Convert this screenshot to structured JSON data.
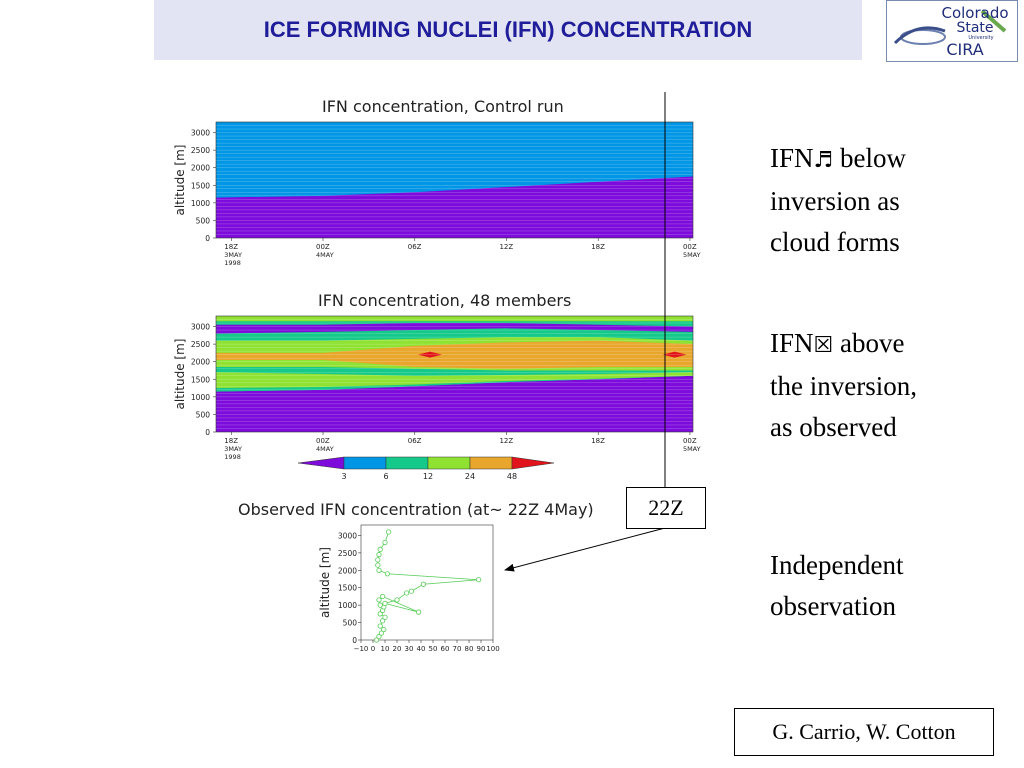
{
  "header": {
    "title": "ICE FORMING NUCLEI (IFN) CONCENTRATION",
    "logo_line1": "Colorado",
    "logo_line2": "State",
    "logo_line3": "University",
    "logo_line4": "CIRA"
  },
  "bullets": [
    {
      "line1_prefix": "IFN",
      "symbol": "♬",
      "line1_suffix": " below",
      "line2": "inversion as",
      "line3": "cloud forms"
    },
    {
      "line1_prefix": "IFN",
      "symbol": "☒",
      "line1_suffix": " above",
      "line2": "the inversion,",
      "line3": "as observed"
    },
    {
      "line1": "Independent",
      "line2": "observation"
    }
  ],
  "marker_label": "22Z",
  "credit": "G. Carrio, W. Cotton",
  "colors": {
    "title_bg": "#e3e4f3",
    "title_text": "#1f1d9a",
    "c_violet": "#7d0bdb",
    "c_blue": "#0096e6",
    "c_teal": "#14c98a",
    "c_green": "#8fe232",
    "c_orange": "#e8a62c",
    "c_red": "#e0141a",
    "observed_line": "#55cc55"
  },
  "chart_data": [
    {
      "type": "heatmap",
      "title": "IFN concentration, Control run",
      "ylabel": "altitude [m]",
      "yticks": [
        "0",
        "500",
        "1000",
        "1500",
        "2000",
        "2500",
        "3000"
      ],
      "ylim": [
        0,
        3300
      ],
      "xticks": [
        {
          "label": "18Z",
          "sub1": "3MAY",
          "sub2": "1998"
        },
        {
          "label": "00Z",
          "sub1": "4MAY",
          "sub2": ""
        },
        {
          "label": "06Z",
          "sub1": "",
          "sub2": ""
        },
        {
          "label": "12Z",
          "sub1": "",
          "sub2": ""
        },
        {
          "label": "18Z",
          "sub1": "",
          "sub2": ""
        },
        {
          "label": "00Z",
          "sub1": "5MAY",
          "sub2": ""
        }
      ],
      "x_hours": [
        0,
        6,
        12,
        18,
        24,
        30
      ],
      "xlim": [
        -1,
        30.2
      ],
      "boundary_hours": [
        -1,
        6,
        12,
        18,
        24,
        30.2
      ],
      "boundary_altitude": [
        1150,
        1200,
        1300,
        1450,
        1600,
        1750
      ],
      "above_class": "blue",
      "below_class": "violet"
    },
    {
      "type": "heatmap",
      "title": "IFN concentration, 48 members",
      "ylabel": "altitude [m]",
      "yticks": [
        "0",
        "500",
        "1000",
        "1500",
        "2000",
        "2500",
        "3000"
      ],
      "ylim": [
        0,
        3300
      ],
      "xticks": [
        {
          "label": "18Z",
          "sub1": "3MAY",
          "sub2": "1998"
        },
        {
          "label": "00Z",
          "sub1": "4MAY",
          "sub2": ""
        },
        {
          "label": "06Z",
          "sub1": "",
          "sub2": ""
        },
        {
          "label": "12Z",
          "sub1": "",
          "sub2": ""
        },
        {
          "label": "18Z",
          "sub1": "",
          "sub2": ""
        },
        {
          "label": "00Z",
          "sub1": "5MAY",
          "sub2": ""
        }
      ],
      "x_hours": [
        0,
        6,
        12,
        18,
        24,
        30
      ],
      "xlim": [
        -1,
        30.2
      ],
      "layers": [
        {
          "class": "violet",
          "lower_hours": [
            -1,
            30.2
          ],
          "lower_alt": [
            0,
            0
          ],
          "upper_hours": [
            -1,
            6,
            12,
            18,
            24,
            30.2
          ],
          "upper_alt": [
            1150,
            1200,
            1300,
            1420,
            1500,
            1600
          ]
        },
        {
          "class": "teal",
          "lower_hours": [
            -1,
            6,
            12,
            18,
            24,
            30.2
          ],
          "lower_alt": [
            1150,
            1200,
            1300,
            1420,
            1500,
            1600
          ],
          "upper_hours": [
            -1,
            30.2
          ],
          "upper_alt": [
            3300,
            3300
          ]
        },
        {
          "class": "green",
          "lower_hours": [
            -1,
            6,
            12,
            18,
            24,
            30.2
          ],
          "lower_alt": [
            1250,
            1280,
            1350,
            1450,
            1520,
            1600
          ],
          "upper_hours": [
            -1,
            6,
            12,
            18,
            24,
            30.2
          ],
          "upper_alt": [
            1700,
            1650,
            1600,
            1620,
            1650,
            1700
          ]
        },
        {
          "class": "green",
          "lower_hours": [
            -1,
            6,
            12,
            18,
            24,
            30.2
          ],
          "lower_alt": [
            1850,
            1850,
            1800,
            1750,
            1750,
            1750
          ],
          "upper_hours": [
            -1,
            6,
            12,
            18,
            24,
            30.2
          ],
          "upper_alt": [
            2600,
            2600,
            2650,
            2700,
            2700,
            2600
          ]
        },
        {
          "class": "orange",
          "lower_hours": [
            -1,
            6,
            12,
            18,
            24,
            30.2
          ],
          "lower_alt": [
            2050,
            2050,
            1850,
            1800,
            1850,
            1850
          ],
          "upper_hours": [
            -1,
            6,
            12,
            18,
            24,
            30.2
          ],
          "upper_alt": [
            2250,
            2250,
            2450,
            2550,
            2600,
            2500
          ]
        },
        {
          "class": "violet",
          "lower_hours": [
            -1,
            6,
            12,
            18,
            24,
            30.2
          ],
          "lower_alt": [
            2800,
            2850,
            2900,
            2950,
            2900,
            2850
          ],
          "upper_hours": [
            -1,
            6,
            12,
            18,
            24,
            30.2
          ],
          "upper_alt": [
            3050,
            3050,
            3100,
            3100,
            3050,
            3000
          ]
        },
        {
          "class": "green",
          "lower_hours": [
            -1,
            30.2
          ],
          "lower_alt": [
            3150,
            3150
          ],
          "upper_hours": [
            -1,
            30.2
          ],
          "upper_alt": [
            3300,
            3300
          ]
        }
      ],
      "red_spots": [
        {
          "hour": 13,
          "alt": 2200
        },
        {
          "hour": 29,
          "alt": 2200
        }
      ]
    },
    {
      "type": "colorbar",
      "tick_labels": [
        "3",
        "6",
        "12",
        "24",
        "48"
      ],
      "classes": [
        "violet",
        "blue",
        "teal",
        "green",
        "orange",
        "red"
      ]
    },
    {
      "type": "line",
      "title": "Observed IFN concentration (at~ 22Z 4May)",
      "ylabel": "altitude [m]",
      "xticks": [
        "−10",
        "0",
        "10",
        "20",
        "30",
        "40",
        "50",
        "60",
        "70",
        "80",
        "90",
        "100"
      ],
      "xlim": [
        -10,
        100
      ],
      "yticks": [
        "0",
        "500",
        "1000",
        "1500",
        "2000",
        "2500",
        "3000"
      ],
      "ylim": [
        0,
        3300
      ],
      "x": [
        3,
        5,
        7,
        9,
        6,
        8,
        10,
        6,
        8,
        9,
        6,
        5,
        8,
        38,
        10,
        20,
        28,
        32,
        42,
        88,
        12,
        5,
        4,
        4,
        5,
        6,
        10,
        13
      ],
      "y": [
        0,
        100,
        200,
        300,
        400,
        550,
        650,
        750,
        850,
        950,
        1000,
        1150,
        1250,
        800,
        1050,
        1150,
        1350,
        1400,
        1600,
        1730,
        1900,
        2000,
        2150,
        2300,
        2450,
        2600,
        2800,
        3100
      ]
    }
  ]
}
